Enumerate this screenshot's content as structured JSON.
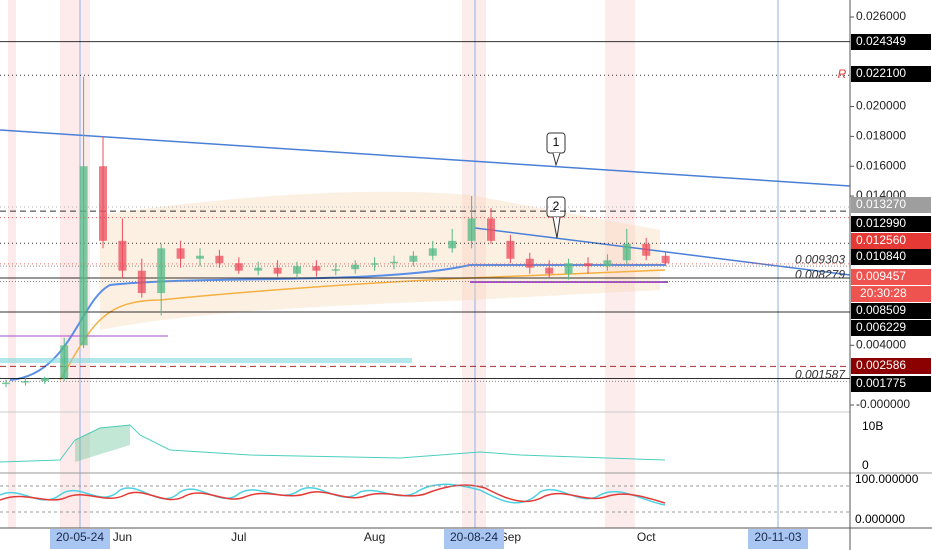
{
  "chart_data": {
    "type": "candlestick",
    "categories": [
      null,
      null,
      null,
      null,
      null,
      null,
      "Jun",
      null,
      null,
      null,
      null,
      null,
      "Jul",
      null,
      null,
      null,
      null,
      null,
      null,
      "Aug",
      null,
      null,
      null,
      null,
      null,
      null,
      "Sep",
      null,
      null,
      null,
      null,
      null,
      null,
      "Oct",
      null
    ],
    "open": [
      0.0014,
      0.0015,
      0.0016,
      0.0018,
      0.004,
      0.016,
      0.011,
      0.009,
      0.0075,
      0.0105,
      0.0098,
      0.01,
      0.0095,
      0.009,
      0.0092,
      0.0088,
      0.0093,
      0.009,
      0.0091,
      0.0094,
      0.0095,
      0.0096,
      0.01,
      0.0105,
      0.011,
      0.0125,
      0.011,
      0.0098,
      0.0092,
      0.0088,
      0.0095,
      0.0093,
      0.0097,
      0.0108,
      0.01
    ],
    "high": [
      0.0017,
      0.0018,
      0.0019,
      0.0045,
      0.022,
      0.018,
      0.0125,
      0.0098,
      0.0108,
      0.011,
      0.0105,
      0.0104,
      0.0099,
      0.0096,
      0.0097,
      0.0096,
      0.0097,
      0.0095,
      0.0097,
      0.0099,
      0.01,
      0.0103,
      0.011,
      0.0118,
      0.014,
      0.0132,
      0.0114,
      0.0102,
      0.0097,
      0.0098,
      0.0099,
      0.0101,
      0.0118,
      0.0112,
      0.0103
    ],
    "low": [
      0.0012,
      0.0013,
      0.0014,
      0.0016,
      0.0038,
      0.0105,
      0.0085,
      0.0072,
      0.006,
      0.0092,
      0.0093,
      0.0092,
      0.0088,
      0.0087,
      0.0086,
      0.0085,
      0.0086,
      0.0087,
      0.0088,
      0.009,
      0.0091,
      0.0093,
      0.0097,
      0.0102,
      0.0105,
      0.0108,
      0.0095,
      0.0088,
      0.0085,
      0.0084,
      0.0088,
      0.009,
      0.0094,
      0.0097,
      0.0093
    ],
    "close": [
      0.0015,
      0.0016,
      0.0018,
      0.004,
      0.016,
      0.011,
      0.009,
      0.0075,
      0.0105,
      0.0098,
      0.01,
      0.0095,
      0.009,
      0.0092,
      0.0088,
      0.0093,
      0.009,
      0.0091,
      0.0094,
      0.0095,
      0.0096,
      0.01,
      0.0105,
      0.011,
      0.0125,
      0.011,
      0.0098,
      0.0092,
      0.0088,
      0.0095,
      0.0093,
      0.0097,
      0.0108,
      0.01,
      0.0095
    ],
    "up_color": "#53b987",
    "down_color": "#eb4d5c",
    "ylim": [
      0,
      0.026
    ],
    "yticks": [
      {
        "value": 0.026,
        "label": "0.026000"
      },
      {
        "value": 0.02,
        "label": "0.020000"
      },
      {
        "value": 0.018,
        "label": "0.018000"
      },
      {
        "value": 0.016,
        "label": "0.016000"
      },
      {
        "value": 0.014,
        "label": "0.014000"
      },
      {
        "value": 0.004,
        "label": "0.004000"
      },
      {
        "value": 0,
        "label": "-0.000000"
      }
    ],
    "price_lines": [
      {
        "value": 0.024349,
        "label": "0.024349",
        "color": "#000000",
        "style": "solid"
      },
      {
        "value": 0.0221,
        "label": "0.022100",
        "color": "#000000",
        "style": "dotted"
      },
      {
        "value": 0.01327,
        "label": "0.013270",
        "color": "#9e9e9e",
        "style": "dotted"
      },
      {
        "value": 0.01299,
        "label": "0.012990",
        "color": "#000000",
        "style": "dashed"
      },
      {
        "value": 0.01256,
        "label": "0.012560",
        "color": "#e53935",
        "style": "dotted"
      },
      {
        "value": 0.01084,
        "label": "0.010840",
        "color": "#000000",
        "style": "dotted"
      },
      {
        "value": 0.009457,
        "label": "0.009457",
        "color": "#ef5350",
        "style": "dotted"
      },
      {
        "value": 0.008509,
        "label": "0.008509",
        "color": "#000000",
        "style": "solid"
      },
      {
        "value": 0.006229,
        "label": "0.006229",
        "color": "#000000",
        "style": "solid"
      },
      {
        "value": 0.002586,
        "label": "0.002586",
        "color": "#8b0000",
        "style": "dashed"
      },
      {
        "value": 0.001775,
        "label": "0.001775",
        "color": "#000000",
        "style": "solid"
      }
    ],
    "countdown": "20:30:28",
    "inline_labels": [
      {
        "value": 0.009303,
        "label": "0.009303"
      },
      {
        "value": 0.008279,
        "label": "0.008279"
      },
      {
        "value": 0.001587,
        "label": "0.001587"
      }
    ],
    "date_markers": [
      "20-05-24",
      "20-08-24",
      "20-11-03"
    ],
    "callouts": [
      "1",
      "2"
    ],
    "volume_scale": [
      "10B",
      "0"
    ],
    "oscillator_scale": [
      "100.000000",
      "0.000000"
    ]
  }
}
